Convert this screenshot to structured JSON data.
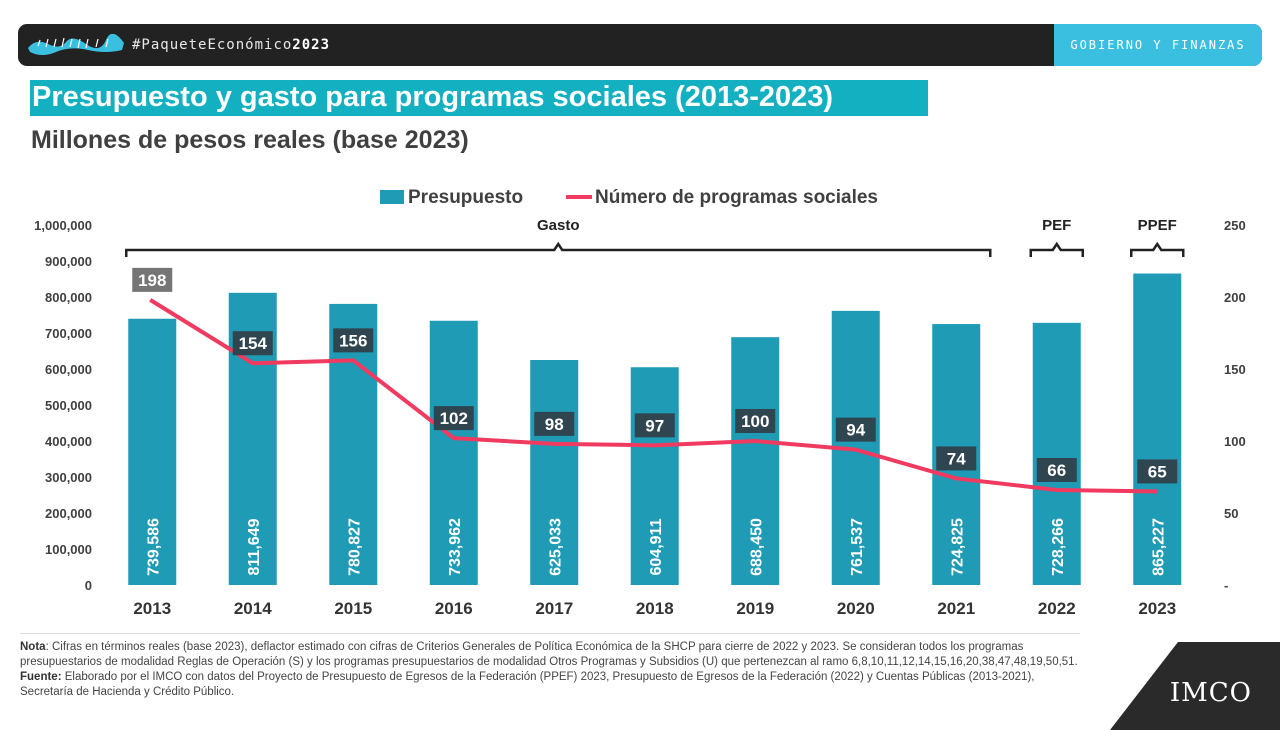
{
  "header": {
    "hashtag_prefix": "#Paquete",
    "hashtag_middle": "Económico",
    "hashtag_year": "2023",
    "section": "GOBIERNO Y FINANZAS"
  },
  "title": "Presupuesto y gasto para programas sociales (2013-2023)",
  "subtitle": "Millones de pesos reales (base 2023)",
  "chart_data": {
    "type": "bar",
    "categories": [
      "2013",
      "2014",
      "2015",
      "2016",
      "2017",
      "2018",
      "2019",
      "2020",
      "2021",
      "2022",
      "2023"
    ],
    "series": [
      {
        "name": "Presupuesto",
        "kind": "bar",
        "axis": "left",
        "color": "#1f9bb5",
        "values": [
          739586,
          811649,
          780827,
          733962,
          625033,
          604911,
          688450,
          761537,
          724825,
          728266,
          865227
        ],
        "labels": [
          "739,586",
          "811,649",
          "780,827",
          "733,962",
          "625,033",
          "604,911",
          "688,450",
          "761,537",
          "724,825",
          "728,266",
          "865,227"
        ]
      },
      {
        "name": "Número de programas sociales",
        "kind": "line",
        "axis": "right",
        "color": "#f03a5f",
        "values": [
          198,
          154,
          156,
          102,
          98,
          97,
          100,
          94,
          74,
          66,
          65
        ]
      }
    ],
    "y_left": {
      "min": 0,
      "max": 1000000,
      "ticks": [
        "0",
        "100,000",
        "200,000",
        "300,000",
        "400,000",
        "500,000",
        "600,000",
        "700,000",
        "800,000",
        "900,000",
        "1,000,000"
      ]
    },
    "y_right": {
      "min": 0,
      "max": 250,
      "ticks": [
        "-",
        "50",
        "100",
        "150",
        "200",
        "250"
      ]
    },
    "annotations": [
      {
        "label": "Gasto",
        "from": "2013",
        "to": "2021"
      },
      {
        "label": "PEF",
        "from": "2022",
        "to": "2022"
      },
      {
        "label": "PPEF",
        "from": "2023",
        "to": "2023"
      }
    ],
    "legend": "top-center",
    "grid": false
  },
  "notes": {
    "nota_label": "Nota",
    "nota_text": ": Cifras en términos reales (base 2023), deflactor estimado con cifras de Criterios Generales de Política Económica de la SHCP para cierre de 2022 y 2023. Se consideran todos los programas presupuestarios de modalidad Reglas de Operación (S) y los programas presupuestarios de modalidad Otros Programas y Subsidios (U) que pertenezcan al ramo 6,8,10,11,12,14,15,16,20,38,47,48,19,50,51.",
    "fuente_label": "Fuente:",
    "fuente_text": " Elaborado por el IMCO con datos del Proyecto de Presupuesto de Egresos de la Federación (PPEF) 2023, Presupuesto de Egresos de la Federación (2022) y Cuentas Públicas (2013-2021), Secretaría de Hacienda y Crédito Público."
  },
  "logo": "IMCO",
  "colors": {
    "accent": "#13b0c2",
    "dark": "#222222",
    "tab": "#3bbfe0"
  }
}
